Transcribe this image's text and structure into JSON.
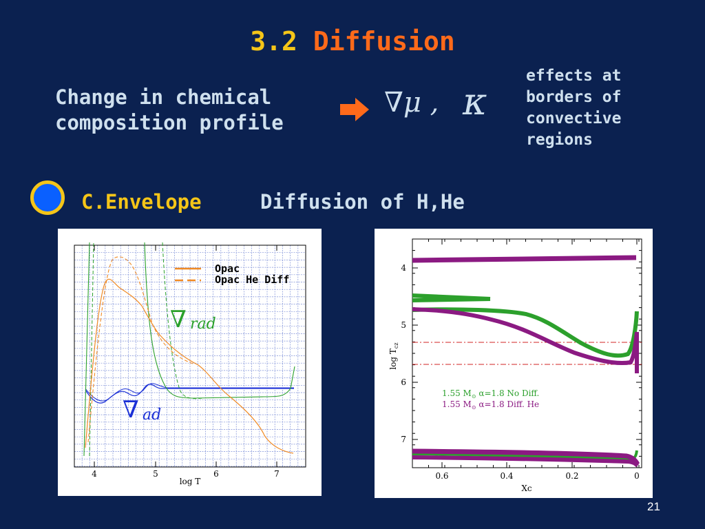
{
  "title": {
    "number": "3.2",
    "word": "Diffusion"
  },
  "intro": {
    "line1": "Change in chemical",
    "line2": "composition profile",
    "nabla_mu": "∇μ ,",
    "kappa": "κ",
    "effects": [
      "effects at",
      "borders of",
      "convective",
      "regions"
    ]
  },
  "section": {
    "label": "C.Envelope",
    "text": "Diffusion of H,He"
  },
  "left_chart": {
    "xlabel": "log T",
    "x_ticks": [
      "4",
      "5",
      "6",
      "7"
    ],
    "legend": [
      "Opac",
      "Opac He Diff"
    ],
    "label_rad": "∇",
    "label_rad_sub": "rad",
    "label_ad": "∇",
    "label_ad_sub": "ad"
  },
  "right_chart": {
    "xlabel": "Xc",
    "ylabel": "log T",
    "ylabel_sub": "cz",
    "x_ticks": [
      "0.6",
      "0.4",
      "0.2",
      "0"
    ],
    "y_ticks": [
      "4",
      "5",
      "6",
      "7"
    ],
    "legend1_mass": "1.55 M",
    "legend1_rest": " α=1.8 No Diff.",
    "legend2_mass": "1.55 M",
    "legend2_rest": " α=1.8 Diff. He"
  },
  "page_number": "21",
  "colors": {
    "opac": "#f08a24",
    "rad": "#2aa02a",
    "ad": "#1a2fd6",
    "nodiff": "#2ca02c",
    "diffhe": "#8b1a82",
    "title_num": "#f5c518",
    "title_word": "#ff6a1a"
  }
}
